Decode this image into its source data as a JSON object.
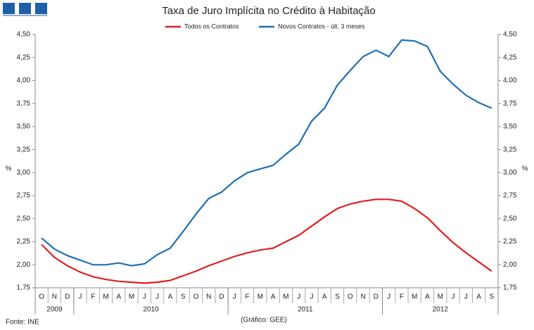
{
  "chart_data": {
    "type": "line",
    "title": "Taxa de Juro Implícita no Crédito à Habitação",
    "ylabel": "%",
    "y2label": "%",
    "source": "Fonte: INE",
    "credit": "(Gráfico: GEE)",
    "categories": [
      "O",
      "N",
      "D",
      "J",
      "F",
      "M",
      "A",
      "M",
      "J",
      "J",
      "A",
      "S",
      "O",
      "N",
      "D",
      "J",
      "F",
      "M",
      "A",
      "M",
      "J",
      "J",
      "A",
      "S",
      "O",
      "N",
      "D",
      "J",
      "F",
      "M",
      "A",
      "M",
      "J",
      "J",
      "A",
      "S"
    ],
    "x_groups": [
      {
        "label": "2009",
        "count": 3
      },
      {
        "label": "2010",
        "count": 12
      },
      {
        "label": "2011",
        "count": 12
      },
      {
        "label": "2012",
        "count": 9
      }
    ],
    "series": [
      {
        "name": "Todos os Contratos",
        "color": "#e02020",
        "values": [
          2.22,
          2.08,
          1.99,
          1.92,
          1.87,
          1.84,
          1.82,
          1.81,
          1.8,
          1.81,
          1.83,
          1.88,
          1.93,
          1.99,
          2.04,
          2.09,
          2.13,
          2.16,
          2.18,
          2.25,
          2.32,
          2.42,
          2.52,
          2.61,
          2.66,
          2.69,
          2.71,
          2.71,
          2.69,
          2.61,
          2.51,
          2.37,
          2.24,
          2.13,
          2.03,
          1.93
        ]
      },
      {
        "name": "Novos Contratos - últ. 3 meses",
        "color": "#1f6fb4",
        "values": [
          2.29,
          2.17,
          2.1,
          2.05,
          2.0,
          2.0,
          2.02,
          1.99,
          2.01,
          2.11,
          2.18,
          2.36,
          2.55,
          2.72,
          2.79,
          2.91,
          3.0,
          3.04,
          3.08,
          3.2,
          3.31,
          3.56,
          3.7,
          3.95,
          4.11,
          4.26,
          4.33,
          4.26,
          4.44,
          4.43,
          4.37,
          4.1,
          3.96,
          3.84,
          3.76,
          3.7
        ]
      }
    ],
    "ylim": [
      1.75,
      4.5
    ],
    "yticks": [
      {
        "value": 1.75,
        "label": "1,75"
      },
      {
        "value": 2,
        "label": "2,00"
      },
      {
        "value": 2.25,
        "label": "2,25"
      },
      {
        "value": 2.5,
        "label": "2,50"
      },
      {
        "value": 2.75,
        "label": "2,75"
      },
      {
        "value": 3,
        "label": "3,00"
      },
      {
        "value": 3.25,
        "label": "3,25"
      },
      {
        "value": 3.5,
        "label": "3,50"
      },
      {
        "value": 3.75,
        "label": "3,75"
      },
      {
        "value": 4,
        "label": "4,00"
      },
      {
        "value": 4.25,
        "label": "4,25"
      },
      {
        "value": 4.5,
        "label": "4,50"
      }
    ],
    "y2lim": [
      1.75,
      4.5
    ],
    "y2ticks": [
      {
        "value": 1.75,
        "label": "1,75"
      },
      {
        "value": 2,
        "label": "2,00"
      },
      {
        "value": 2.25,
        "label": "2,25"
      },
      {
        "value": 2.5,
        "label": "2,50"
      },
      {
        "value": 2.75,
        "label": "2,75"
      },
      {
        "value": 3,
        "label": "3,00"
      },
      {
        "value": 3.25,
        "label": "3,25"
      },
      {
        "value": 3.5,
        "label": "3,50"
      },
      {
        "value": 3.75,
        "label": "3,75"
      },
      {
        "value": 4,
        "label": "4,00"
      },
      {
        "value": 4.25,
        "label": "4,25"
      },
      {
        "value": 4.5,
        "label": "4,50"
      }
    ],
    "legend": "top"
  }
}
